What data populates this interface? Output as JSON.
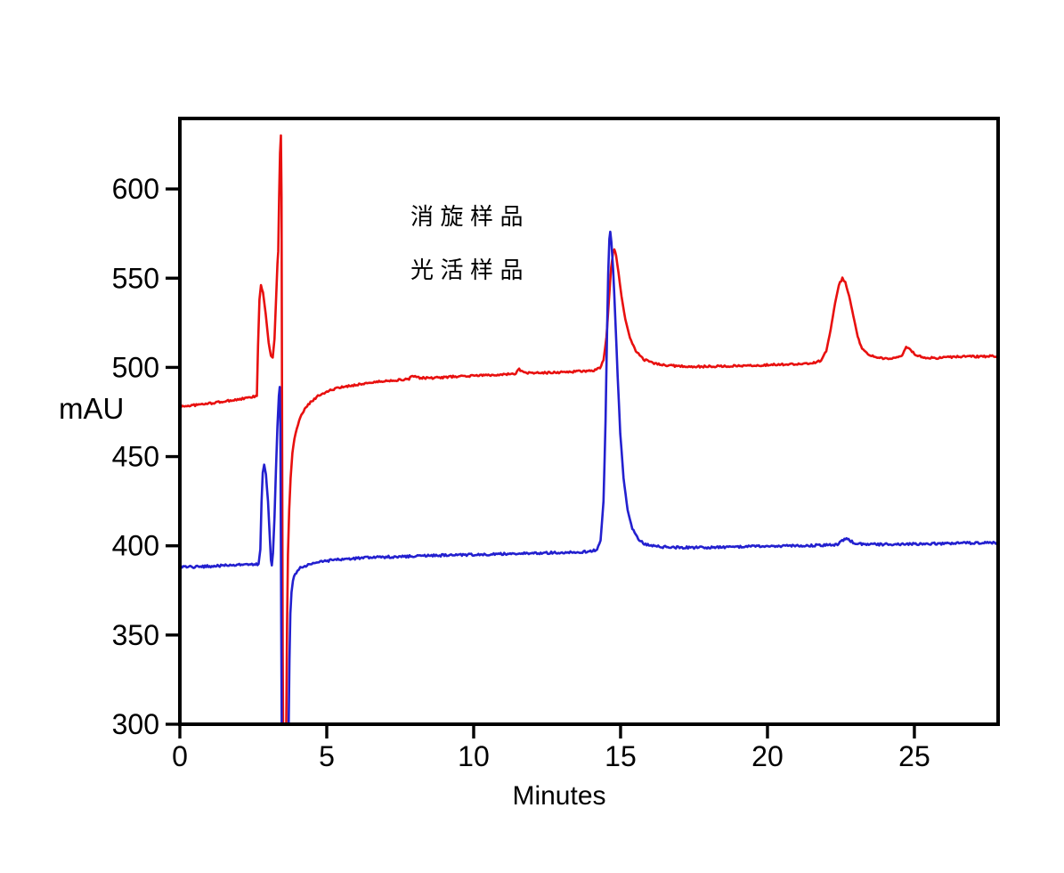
{
  "page": {
    "background": "#ffffff",
    "axis_color": "#000000"
  },
  "chart_data": {
    "type": "line",
    "title": "",
    "xlabel": "Minutes",
    "ylabel": "mAU",
    "xlim": [
      0,
      27.85
    ],
    "ylim": [
      300,
      639.5
    ],
    "x_ticks": [
      0,
      5,
      10,
      15,
      20,
      25
    ],
    "y_ticks": [
      300,
      350,
      400,
      450,
      500,
      550,
      600
    ],
    "grid": false,
    "legend_position": "inside-upper-left",
    "legend": [
      {
        "label": "消旋样品",
        "color": "#e8100f"
      },
      {
        "label": "光活样品",
        "color": "#2320cf"
      }
    ],
    "series": [
      {
        "name": "消旋样品",
        "color": "#e8100f",
        "noise_mAU": 0.55,
        "points": [
          [
            0,
            478
          ],
          [
            0.6,
            479
          ],
          [
            1.2,
            480.2
          ],
          [
            1.8,
            481.6
          ],
          [
            2.3,
            482.8
          ],
          [
            2.62,
            484
          ],
          [
            2.66,
            512
          ],
          [
            2.71,
            538
          ],
          [
            2.76,
            546
          ],
          [
            2.83,
            542
          ],
          [
            2.92,
            530
          ],
          [
            3.02,
            514
          ],
          [
            3.1,
            506
          ],
          [
            3.16,
            505.5
          ],
          [
            3.22,
            516
          ],
          [
            3.28,
            540
          ],
          [
            3.32,
            558
          ],
          [
            3.35,
            565
          ],
          [
            3.38,
            596
          ],
          [
            3.41,
            620
          ],
          [
            3.44,
            630
          ],
          [
            3.46,
            595
          ],
          [
            3.48,
            470
          ],
          [
            3.5,
            340
          ],
          [
            3.52,
            270
          ],
          [
            3.58,
            258
          ],
          [
            3.62,
            300
          ],
          [
            3.65,
            355
          ],
          [
            3.68,
            395
          ],
          [
            3.72,
            420
          ],
          [
            3.77,
            438
          ],
          [
            3.83,
            452
          ],
          [
            3.9,
            460
          ],
          [
            3.98,
            466
          ],
          [
            4.1,
            472
          ],
          [
            4.25,
            476.5
          ],
          [
            4.45,
            480.5
          ],
          [
            4.7,
            484
          ],
          [
            5,
            486.5
          ],
          [
            5.4,
            488.5
          ],
          [
            5.9,
            490
          ],
          [
            6.5,
            491.5
          ],
          [
            7.1,
            492.5
          ],
          [
            7.65,
            493.2
          ],
          [
            7.8,
            493.4
          ],
          [
            7.92,
            495.5
          ],
          [
            8.05,
            494.2
          ],
          [
            8.6,
            494
          ],
          [
            9.3,
            494.8
          ],
          [
            10.1,
            495.4
          ],
          [
            10.9,
            496
          ],
          [
            11.4,
            496.3
          ],
          [
            11.55,
            499
          ],
          [
            11.72,
            496.8
          ],
          [
            12.5,
            497
          ],
          [
            13.3,
            497.5
          ],
          [
            14.05,
            498.2
          ],
          [
            14.3,
            499.5
          ],
          [
            14.42,
            504
          ],
          [
            14.52,
            517
          ],
          [
            14.6,
            537
          ],
          [
            14.68,
            556
          ],
          [
            14.75,
            565
          ],
          [
            14.79,
            566
          ],
          [
            14.85,
            562.5
          ],
          [
            14.93,
            553
          ],
          [
            15.03,
            540
          ],
          [
            15.16,
            527
          ],
          [
            15.32,
            516.5
          ],
          [
            15.52,
            509
          ],
          [
            15.78,
            504.5
          ],
          [
            16.1,
            502.5
          ],
          [
            16.5,
            501.2
          ],
          [
            17,
            500.7
          ],
          [
            17.7,
            500.4
          ],
          [
            18.5,
            500.7
          ],
          [
            19.3,
            501
          ],
          [
            20.1,
            501.4
          ],
          [
            20.9,
            501.9
          ],
          [
            21.5,
            502.4
          ],
          [
            21.82,
            503.6
          ],
          [
            22,
            509
          ],
          [
            22.15,
            521
          ],
          [
            22.3,
            536
          ],
          [
            22.43,
            546
          ],
          [
            22.55,
            550
          ],
          [
            22.65,
            547.5
          ],
          [
            22.78,
            540
          ],
          [
            22.92,
            529
          ],
          [
            23.07,
            517.5
          ],
          [
            23.22,
            510.5
          ],
          [
            23.42,
            507
          ],
          [
            23.7,
            505.5
          ],
          [
            24.05,
            505
          ],
          [
            24.4,
            505.4
          ],
          [
            24.58,
            507
          ],
          [
            24.72,
            511.5
          ],
          [
            24.88,
            509.5
          ],
          [
            25.08,
            506.5
          ],
          [
            25.35,
            505.5
          ],
          [
            25.75,
            505.3
          ],
          [
            26.15,
            505.8
          ],
          [
            26.7,
            506
          ],
          [
            27.3,
            506.1
          ],
          [
            27.85,
            506.4
          ]
        ]
      },
      {
        "name": "光活样品",
        "color": "#2320cf",
        "noise_mAU": 0.65,
        "points": [
          [
            0,
            388
          ],
          [
            0.7,
            388.3
          ],
          [
            1.4,
            388.8
          ],
          [
            2.1,
            389.3
          ],
          [
            2.68,
            389.8
          ],
          [
            2.74,
            398
          ],
          [
            2.78,
            424
          ],
          [
            2.82,
            441
          ],
          [
            2.87,
            445.5
          ],
          [
            2.93,
            440
          ],
          [
            3,
            425
          ],
          [
            3.06,
            405
          ],
          [
            3.1,
            392
          ],
          [
            3.13,
            389
          ],
          [
            3.17,
            396
          ],
          [
            3.22,
            416
          ],
          [
            3.27,
            442
          ],
          [
            3.32,
            467
          ],
          [
            3.37,
            484
          ],
          [
            3.4,
            489
          ],
          [
            3.42,
            465
          ],
          [
            3.44,
            400
          ],
          [
            3.46,
            320
          ],
          [
            3.48,
            258
          ],
          [
            3.66,
            252
          ],
          [
            3.7,
            295
          ],
          [
            3.73,
            336
          ],
          [
            3.76,
            362
          ],
          [
            3.8,
            374
          ],
          [
            3.85,
            380.5
          ],
          [
            3.92,
            384
          ],
          [
            4,
            386
          ],
          [
            4.1,
            387.5
          ],
          [
            4.22,
            388.3
          ],
          [
            4.4,
            389.5
          ],
          [
            4.62,
            390.5
          ],
          [
            4.9,
            391.4
          ],
          [
            5.3,
            392.1
          ],
          [
            5.8,
            392.8
          ],
          [
            6.4,
            393.3
          ],
          [
            7.1,
            393.8
          ],
          [
            7.9,
            394.2
          ],
          [
            8.8,
            394.6
          ],
          [
            9.8,
            395
          ],
          [
            10.8,
            395.4
          ],
          [
            11.8,
            395.8
          ],
          [
            12.8,
            396.2
          ],
          [
            13.7,
            396.6
          ],
          [
            14.05,
            397
          ],
          [
            14.2,
            398
          ],
          [
            14.32,
            403
          ],
          [
            14.42,
            425
          ],
          [
            14.49,
            470
          ],
          [
            14.54,
            520
          ],
          [
            14.58,
            553
          ],
          [
            14.62,
            572
          ],
          [
            14.65,
            576
          ],
          [
            14.69,
            570
          ],
          [
            14.75,
            554
          ],
          [
            14.82,
            528
          ],
          [
            14.9,
            495
          ],
          [
            14.99,
            463
          ],
          [
            15.1,
            438
          ],
          [
            15.24,
            420
          ],
          [
            15.4,
            409.5
          ],
          [
            15.6,
            403.5
          ],
          [
            15.85,
            400.8
          ],
          [
            16.2,
            399.6
          ],
          [
            16.8,
            399.1
          ],
          [
            17.5,
            399
          ],
          [
            18.3,
            399.2
          ],
          [
            19.2,
            399.5
          ],
          [
            20.1,
            399.8
          ],
          [
            21.1,
            400.1
          ],
          [
            22.05,
            400.4
          ],
          [
            22.35,
            400.6
          ],
          [
            22.5,
            402
          ],
          [
            22.62,
            404
          ],
          [
            22.76,
            403.4
          ],
          [
            22.95,
            401.6
          ],
          [
            23.25,
            400.8
          ],
          [
            24,
            400.8
          ],
          [
            25,
            401
          ],
          [
            26,
            401.3
          ],
          [
            27,
            401.6
          ],
          [
            27.85,
            401.8
          ]
        ]
      }
    ]
  }
}
